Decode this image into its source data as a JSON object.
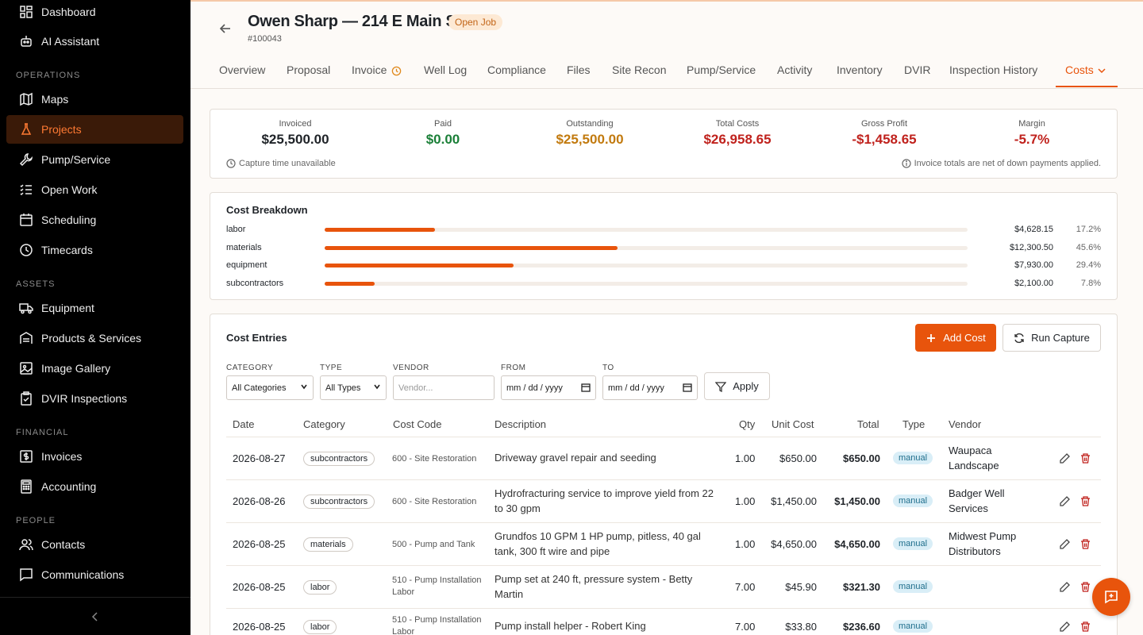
{
  "sidebar": {
    "items_top": [
      {
        "label": "Dashboard",
        "icon": "dashboard-icon"
      },
      {
        "label": "AI Assistant",
        "icon": "robot-icon"
      }
    ],
    "sections": [
      {
        "label": "OPERATIONS",
        "items": [
          {
            "label": "Maps",
            "icon": "map-icon"
          },
          {
            "label": "Projects",
            "icon": "flask-icon",
            "active": true
          },
          {
            "label": "Pump/Service",
            "icon": "wrench-icon"
          },
          {
            "label": "Open Work",
            "icon": "checklist-icon"
          },
          {
            "label": "Scheduling",
            "icon": "calendar-icon"
          },
          {
            "label": "Timecards",
            "icon": "clock-icon"
          }
        ]
      },
      {
        "label": "ASSETS",
        "items": [
          {
            "label": "Equipment",
            "icon": "truck-icon"
          },
          {
            "label": "Products & Services",
            "icon": "warehouse-icon"
          },
          {
            "label": "Image Gallery",
            "icon": "image-icon"
          },
          {
            "label": "DVIR Inspections",
            "icon": "clipboard-icon"
          }
        ]
      },
      {
        "label": "FINANCIAL",
        "items": [
          {
            "label": "Invoices",
            "icon": "dollar-icon"
          },
          {
            "label": "Accounting",
            "icon": "calculator-icon"
          }
        ]
      },
      {
        "label": "PEOPLE",
        "items": [
          {
            "label": "Contacts",
            "icon": "users-icon"
          },
          {
            "label": "Communications",
            "icon": "message-icon"
          }
        ]
      }
    ]
  },
  "header": {
    "title": "Owen Sharp — 214 E Main St",
    "status": "Open Job",
    "job_number": "#100043"
  },
  "tabs": [
    "Overview",
    "Proposal",
    "Invoice",
    "Well Log",
    "Compliance",
    "Files",
    "Site Recon",
    "Pump/Service",
    "Activity",
    "Inventory",
    "DVIR",
    "Inspection History",
    "Costs"
  ],
  "active_tab": "Costs",
  "summary": {
    "metrics": [
      {
        "label": "Invoiced",
        "value": "$25,500.00",
        "color": "#1f2328"
      },
      {
        "label": "Paid",
        "value": "$0.00",
        "color": "#1a7f37"
      },
      {
        "label": "Outstanding",
        "value": "$25,500.00",
        "color": "#c27a0e"
      },
      {
        "label": "Total Costs",
        "value": "$26,958.65",
        "color": "#c0221d"
      },
      {
        "label": "Gross Profit",
        "value": "-$1,458.65",
        "color": "#c0221d"
      },
      {
        "label": "Margin",
        "value": "-5.7%",
        "color": "#c0221d"
      }
    ],
    "capture_note": "Capture time unavailable",
    "invoice_note": "Invoice totals are net of down payments applied."
  },
  "breakdown": {
    "title": "Cost Breakdown",
    "rows": [
      {
        "name": "labor",
        "amount": "$4,628.15",
        "pct": "17.2%",
        "fraction": 0.172
      },
      {
        "name": "materials",
        "amount": "$12,300.50",
        "pct": "45.6%",
        "fraction": 0.456
      },
      {
        "name": "equipment",
        "amount": "$7,930.00",
        "pct": "29.4%",
        "fraction": 0.294
      },
      {
        "name": "subcontractors",
        "amount": "$2,100.00",
        "pct": "7.8%",
        "fraction": 0.078
      }
    ]
  },
  "entries": {
    "title": "Cost Entries",
    "add_label": "Add Cost",
    "capture_label": "Run Capture",
    "filters": {
      "category_label": "CATEGORY",
      "category_value": "All Categories",
      "type_label": "TYPE",
      "type_value": "All Types",
      "vendor_label": "VENDOR",
      "vendor_placeholder": "Vendor...",
      "from_label": "FROM",
      "from_value": "mm / dd / yyyy",
      "to_label": "TO",
      "to_value": "mm / dd / yyyy",
      "apply_label": "Apply"
    },
    "columns": [
      "Date",
      "Category",
      "Cost Code",
      "Description",
      "Qty",
      "Unit Cost",
      "Total",
      "Type",
      "Vendor"
    ],
    "rows": [
      {
        "date": "2026-08-27",
        "category": "subcontractors",
        "code": "600 - Site Restoration",
        "description": "Driveway gravel repair and seeding",
        "qty": "1.00",
        "unit": "$650.00",
        "total": "$650.00",
        "type": "manual",
        "vendor": "Waupaca Landscape"
      },
      {
        "date": "2026-08-26",
        "category": "subcontractors",
        "code": "600 - Site Restoration",
        "description": "Hydrofracturing service to improve yield from 22 to 30 gpm",
        "qty": "1.00",
        "unit": "$1,450.00",
        "total": "$1,450.00",
        "type": "manual",
        "vendor": "Badger Well Services"
      },
      {
        "date": "2026-08-25",
        "category": "materials",
        "code": "500 - Pump and Tank",
        "description": "Grundfos 10 GPM 1 HP pump, pitless, 40 gal tank, 300 ft wire and pipe",
        "qty": "1.00",
        "unit": "$4,650.00",
        "total": "$4,650.00",
        "type": "manual",
        "vendor": "Midwest Pump Distributors"
      },
      {
        "date": "2026-08-25",
        "category": "labor",
        "code": "510 - Pump Installation Labor",
        "description": "Pump set at 240 ft, pressure system - Betty Martin",
        "qty": "7.00",
        "unit": "$45.90",
        "total": "$321.30",
        "type": "manual",
        "vendor": ""
      },
      {
        "date": "2026-08-25",
        "category": "labor",
        "code": "510 - Pump Installation Labor",
        "description": "Pump install helper - Robert King",
        "qty": "7.00",
        "unit": "$33.80",
        "total": "$236.60",
        "type": "manual",
        "vendor": ""
      }
    ]
  }
}
